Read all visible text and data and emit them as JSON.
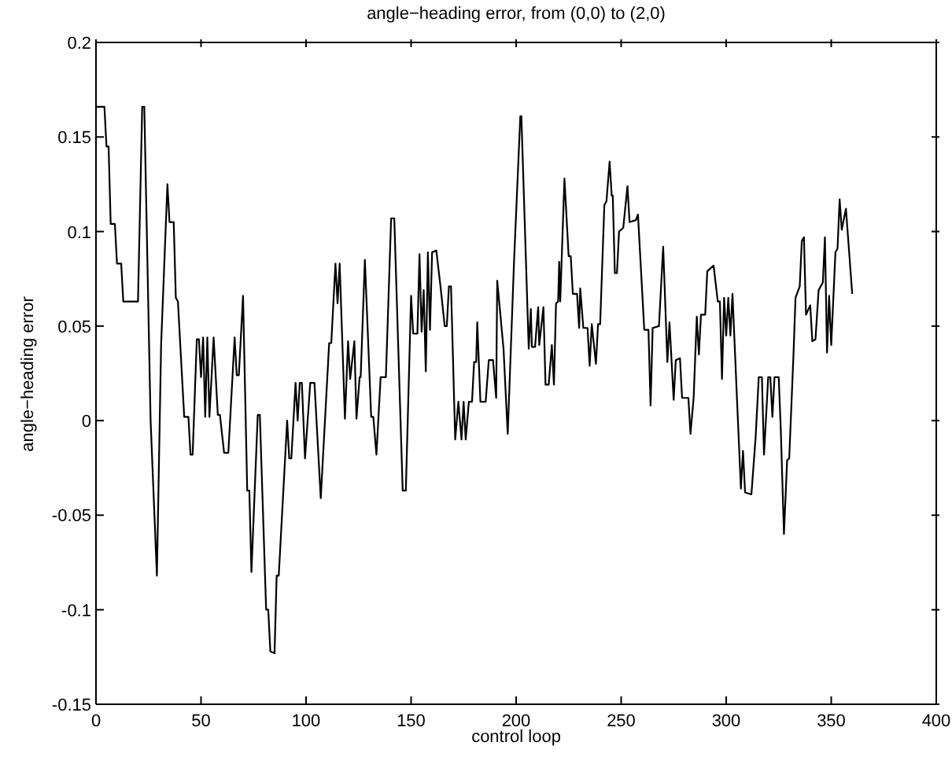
{
  "chart_data": {
    "type": "line",
    "title": "angle−heading error, from (0,0) to (2,0)",
    "xlabel": "control loop",
    "ylabel": "angle−heading error",
    "xlim": [
      0,
      400
    ],
    "xticks": [
      0,
      50,
      100,
      150,
      200,
      250,
      300,
      350,
      400
    ],
    "ylim": [
      -0.15,
      0.2
    ],
    "yticks": [
      -0.15,
      -0.1,
      -0.05,
      0,
      0.05,
      0.1,
      0.15,
      0.2
    ],
    "marker": "none",
    "line_style": "solid",
    "series": [
      {
        "color": "#000000",
        "x": [
          0,
          4,
          5,
          6,
          7,
          9,
          10,
          12,
          13,
          20,
          22,
          23,
          26,
          29,
          31,
          34,
          35,
          37,
          38,
          39,
          42,
          44,
          45,
          46,
          48,
          49,
          50,
          51,
          52,
          53,
          54,
          56,
          58,
          59,
          61,
          63,
          66,
          67,
          68,
          70,
          72,
          73,
          74,
          77,
          78,
          81,
          82,
          83,
          85,
          86,
          87,
          91,
          92,
          93,
          95,
          96,
          97,
          98,
          99.5,
          102,
          104,
          107,
          111,
          112,
          114,
          115,
          116,
          118.5,
          120,
          121,
          123,
          124,
          125.5,
          126,
          128,
          131,
          132,
          133.5,
          135.5,
          138,
          140.5,
          142,
          146,
          147.5,
          150,
          151,
          153,
          154,
          155,
          156,
          157,
          158,
          159,
          160,
          162,
          164,
          166,
          167,
          168,
          169,
          171,
          172.5,
          174,
          175,
          176,
          177.5,
          179,
          180,
          181,
          181.5,
          183,
          185.5,
          187,
          189,
          190.5,
          191,
          194,
          196,
          199,
          202,
          202.5,
          206,
          207,
          207.5,
          209,
          210.5,
          211,
          213,
          214,
          215.5,
          217,
          218,
          219,
          220,
          220.5,
          221,
          223,
          225,
          226,
          227,
          229,
          230,
          230.5,
          232,
          234,
          235,
          236,
          238,
          239,
          240,
          242,
          243,
          244.5,
          245.5,
          246,
          247,
          248,
          249,
          251,
          253,
          254,
          257,
          258,
          261,
          263,
          264,
          265,
          268,
          270,
          272,
          273,
          275,
          276,
          278,
          279,
          282,
          283,
          284.5,
          286,
          287,
          288,
          290,
          291,
          294,
          296,
          297,
          298,
          299,
          300,
          301,
          302,
          303,
          305,
          307,
          308,
          309,
          312,
          314,
          315.5,
          317,
          318,
          320,
          321,
          322,
          323,
          325,
          326,
          327.5,
          329,
          330,
          332,
          333,
          335,
          336,
          337,
          338,
          340,
          341,
          342.5,
          344,
          346,
          347,
          348,
          349,
          350,
          352,
          353,
          354,
          355,
          357,
          360
        ],
        "values": [
          0.166,
          0.166,
          0.145,
          0.145,
          0.104,
          0.104,
          0.083,
          0.083,
          0.063,
          0.063,
          0.166,
          0.166,
          0.0,
          -0.082,
          0.04,
          0.125,
          0.105,
          0.105,
          0.065,
          0.063,
          0.002,
          0.002,
          -0.018,
          -0.018,
          0.043,
          0.043,
          0.023,
          0.044,
          0.002,
          0.044,
          0.002,
          0.044,
          0.003,
          0.003,
          -0.017,
          -0.017,
          0.044,
          0.024,
          0.024,
          0.066,
          -0.037,
          -0.037,
          -0.08,
          0.003,
          0.003,
          -0.1,
          -0.1,
          -0.122,
          -0.123,
          -0.082,
          -0.082,
          0.0,
          -0.02,
          -0.02,
          0.02,
          0.0,
          0.02,
          0.02,
          -0.02,
          0.02,
          0.02,
          -0.041,
          0.041,
          0.041,
          0.083,
          0.062,
          0.083,
          0.001,
          0.042,
          0.022,
          0.042,
          0.001,
          0.023,
          0.023,
          0.085,
          0.002,
          0.002,
          -0.018,
          0.023,
          0.023,
          0.107,
          0.107,
          -0.037,
          -0.037,
          0.066,
          0.046,
          0.046,
          0.088,
          0.047,
          0.069,
          0.026,
          0.089,
          0.048,
          0.089,
          0.09,
          0.071,
          0.05,
          0.05,
          0.071,
          0.071,
          -0.01,
          0.01,
          -0.01,
          0.01,
          -0.01,
          0.01,
          0.01,
          0.031,
          0.031,
          0.052,
          0.01,
          0.01,
          0.032,
          0.032,
          0.012,
          0.074,
          0.038,
          -0.007,
          0.084,
          0.161,
          0.161,
          0.038,
          0.059,
          0.039,
          0.039,
          0.06,
          0.04,
          0.06,
          0.019,
          0.019,
          0.04,
          0.019,
          0.062,
          0.063,
          0.084,
          0.063,
          0.128,
          0.087,
          0.087,
          0.067,
          0.067,
          0.049,
          0.07,
          0.049,
          0.049,
          0.029,
          0.051,
          0.03,
          0.051,
          0.051,
          0.114,
          0.116,
          0.137,
          0.119,
          0.119,
          0.078,
          0.078,
          0.1,
          0.102,
          0.124,
          0.105,
          0.106,
          0.109,
          0.048,
          0.048,
          0.008,
          0.049,
          0.05,
          0.092,
          0.031,
          0.052,
          0.011,
          0.032,
          0.033,
          0.012,
          0.012,
          -0.007,
          0.012,
          0.055,
          0.035,
          0.056,
          0.056,
          0.079,
          0.082,
          0.063,
          0.063,
          0.022,
          0.065,
          0.045,
          0.065,
          0.045,
          0.067,
          0.015,
          -0.036,
          -0.016,
          -0.038,
          -0.039,
          -0.009,
          0.023,
          0.023,
          -0.018,
          0.023,
          0.023,
          0.002,
          0.023,
          0.023,
          -0.005,
          -0.06,
          -0.021,
          -0.02,
          0.034,
          0.065,
          0.071,
          0.095,
          0.097,
          0.056,
          0.061,
          0.042,
          0.043,
          0.069,
          0.073,
          0.097,
          0.036,
          0.066,
          0.04,
          0.089,
          0.091,
          0.117,
          0.101,
          0.112,
          0.067
        ]
      }
    ]
  }
}
